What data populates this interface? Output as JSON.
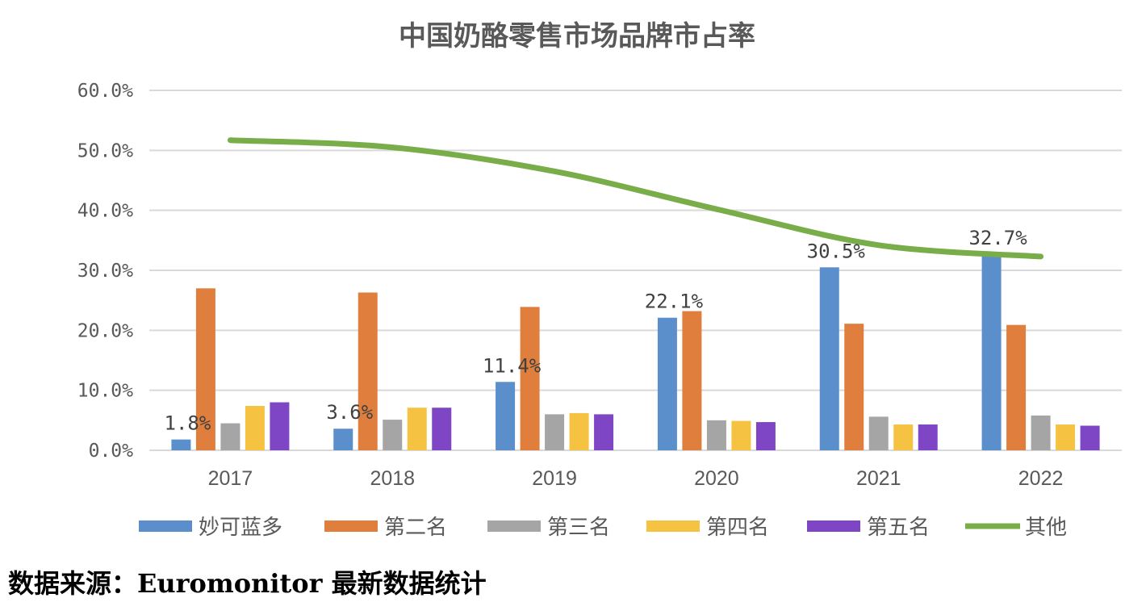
{
  "chart_data": {
    "type": "bar",
    "title": "中国奶酪零售市场品牌市占率",
    "categories": [
      "2017",
      "2018",
      "2019",
      "2020",
      "2021",
      "2022"
    ],
    "ylim": [
      0,
      60
    ],
    "yticks": [
      "0.0%",
      "10.0%",
      "20.0%",
      "30.0%",
      "40.0%",
      "50.0%",
      "60.0%"
    ],
    "ytick_values": [
      0,
      10,
      20,
      30,
      40,
      50,
      60
    ],
    "grid": true,
    "legend_position": "bottom",
    "series": [
      {
        "name": "妙可蓝多",
        "type": "bar",
        "color": "#5B8FCC",
        "values": [
          1.8,
          3.6,
          11.4,
          22.1,
          30.5,
          32.7
        ]
      },
      {
        "name": "第二名",
        "type": "bar",
        "color": "#E07F3D",
        "values": [
          27.0,
          26.3,
          23.9,
          23.2,
          21.1,
          20.9
        ]
      },
      {
        "name": "第三名",
        "type": "bar",
        "color": "#A5A5A5",
        "values": [
          4.5,
          5.1,
          6.0,
          5.0,
          5.6,
          5.8
        ]
      },
      {
        "name": "第四名",
        "type": "bar",
        "color": "#F5C242",
        "values": [
          7.4,
          7.1,
          6.2,
          4.9,
          4.3,
          4.3
        ]
      },
      {
        "name": "第五名",
        "type": "bar",
        "color": "#7E45C4",
        "values": [
          8.0,
          7.1,
          6.0,
          4.7,
          4.3,
          4.1
        ]
      },
      {
        "name": "其他",
        "type": "line",
        "color": "#78AD4A",
        "values": [
          51.7,
          50.5,
          46.5,
          40.2,
          34.2,
          32.3
        ]
      }
    ],
    "data_labels": [
      "1.8%",
      "3.6%",
      "11.4%",
      "22.1%",
      "30.5%",
      "32.7%"
    ]
  },
  "source": "数据来源：Euromonitor 最新数据统计"
}
